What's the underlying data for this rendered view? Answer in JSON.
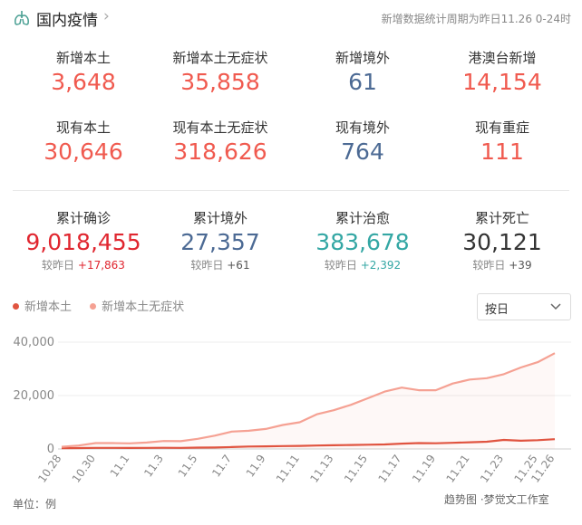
{
  "header": {
    "title": "国内疫情",
    "period": "新增数据统计周期为昨日11.26 0-24时"
  },
  "stats": [
    {
      "label": "新增本土",
      "value": "3,648",
      "color": "red"
    },
    {
      "label": "新增本土无症状",
      "value": "35,858",
      "color": "red"
    },
    {
      "label": "新增境外",
      "value": "61",
      "color": "blue"
    },
    {
      "label": "港澳台新增",
      "value": "14,154",
      "color": "red"
    },
    {
      "label": "现有本土",
      "value": "30,646",
      "color": "red"
    },
    {
      "label": "现有本土无症状",
      "value": "318,626",
      "color": "red"
    },
    {
      "label": "现有境外",
      "value": "764",
      "color": "blue"
    },
    {
      "label": "现有重症",
      "value": "111",
      "color": "red"
    }
  ],
  "cumulative": [
    {
      "label": "累计确诊",
      "value": "9,018,455",
      "delta_prefix": "较昨日",
      "delta": "+17,863"
    },
    {
      "label": "累计境外",
      "value": "27,357",
      "delta_prefix": "较昨日",
      "delta": "+61"
    },
    {
      "label": "累计治愈",
      "value": "383,678",
      "delta_prefix": "较昨日",
      "delta": "+2,392"
    },
    {
      "label": "累计死亡",
      "value": "30,121",
      "delta_prefix": "较昨日",
      "delta": "+39"
    }
  ],
  "select": {
    "value": "按日"
  },
  "footer": {
    "unit": "单位：例",
    "watermark": "趋势图 ·梦觉文工作室"
  },
  "colors": {
    "local": "#e05440",
    "asymptomatic": "#f5a193",
    "red": "#f05a4f",
    "blue": "#4c6a94"
  },
  "chart_data": {
    "type": "line",
    "x": [
      "10.28",
      "10.29",
      "10.30",
      "10.31",
      "11.1",
      "11.2",
      "11.3",
      "11.4",
      "11.5",
      "11.6",
      "11.7",
      "11.8",
      "11.9",
      "11.10",
      "11.11",
      "11.12",
      "11.13",
      "11.14",
      "11.15",
      "11.16",
      "11.17",
      "11.18",
      "11.19",
      "11.20",
      "11.21",
      "11.22",
      "11.23",
      "11.24",
      "11.25",
      "11.26"
    ],
    "x_tick_labels": [
      "10.28",
      "10.30",
      "11.1",
      "11.3",
      "11.5",
      "11.7",
      "11.9",
      "11.11",
      "11.13",
      "11.15",
      "11.17",
      "11.19",
      "11.21",
      "11.23",
      "11.25",
      "11.26"
    ],
    "series": [
      {
        "name": "新增本土",
        "color": "#e05440",
        "values": [
          300,
          350,
          400,
          420,
          380,
          420,
          450,
          420,
          500,
          550,
          700,
          900,
          1000,
          1100,
          1150,
          1300,
          1400,
          1500,
          1600,
          1700,
          2000,
          2200,
          2150,
          2300,
          2500,
          2700,
          3400,
          3100,
          3300,
          3648
        ]
      },
      {
        "name": "新增本土无症状",
        "color": "#f5a193",
        "values": [
          800,
          1300,
          2200,
          2200,
          2100,
          2400,
          3000,
          2900,
          3800,
          5000,
          6500,
          6800,
          7500,
          9000,
          10000,
          13000,
          14500,
          16500,
          19000,
          21500,
          23000,
          22000,
          22000,
          24500,
          26000,
          26500,
          28000,
          30500,
          32500,
          35858
        ]
      }
    ],
    "y_ticks": [
      "0",
      "20,000",
      "40,000"
    ],
    "ylim": [
      0,
      40000
    ],
    "grid": true,
    "legend": "top-left"
  }
}
